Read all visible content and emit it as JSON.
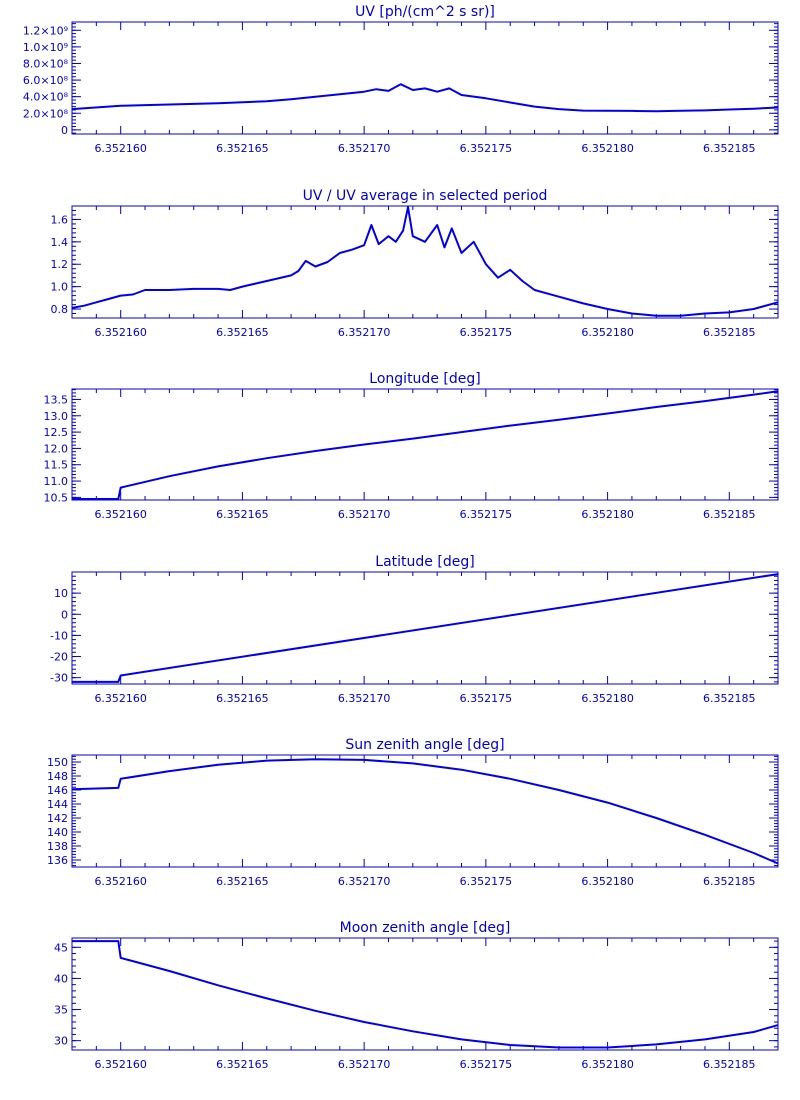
{
  "colors": {
    "axis": "#0000cc",
    "line": "#0000ee",
    "background": "#ffffff"
  },
  "x_tick_labels": [
    "6.352160",
    "6.352165",
    "6.352170",
    "6.352175",
    "6.352180",
    "6.352185"
  ],
  "chart_data": [
    {
      "type": "line",
      "title": "UV [ph/(cm^2 s sr)]",
      "xlim": [
        6.352158,
        6.352187
      ],
      "ylim": [
        -50000000,
        1300000000
      ],
      "yticks": [
        0,
        200000000,
        400000000,
        600000000,
        800000000,
        1000000000,
        1200000000
      ],
      "ytick_labels": [
        "0",
        "2.0×10⁸",
        "4.0×10⁸",
        "6.0×10⁸",
        "8.0×10⁸",
        "1.0×10⁹",
        "1.2×10⁹"
      ],
      "x": [
        6.352158,
        6.35216,
        6.352162,
        6.352164,
        6.352166,
        6.352167,
        6.352168,
        6.352169,
        6.35217,
        6.3521705,
        6.352171,
        6.3521715,
        6.352172,
        6.3521725,
        6.352173,
        6.3521735,
        6.352174,
        6.352175,
        6.352176,
        6.352177,
        6.352178,
        6.352179,
        6.35218,
        6.352181,
        6.352182,
        6.352183,
        6.352184,
        6.352185,
        6.352186,
        6.352187
      ],
      "y": [
        250000000,
        290000000,
        305000000,
        320000000,
        345000000,
        370000000,
        400000000,
        430000000,
        460000000,
        490000000,
        470000000,
        550000000,
        480000000,
        500000000,
        460000000,
        500000000,
        420000000,
        380000000,
        330000000,
        280000000,
        250000000,
        232000000,
        230000000,
        228000000,
        225000000,
        230000000,
        235000000,
        245000000,
        255000000,
        270000000
      ]
    },
    {
      "type": "line",
      "title": "UV / UV average in selected period",
      "xlim": [
        6.352158,
        6.352187
      ],
      "ylim": [
        0.72,
        1.72
      ],
      "yticks": [
        0.8,
        1.0,
        1.2,
        1.4,
        1.6
      ],
      "ytick_labels": [
        "0.8",
        "1.0",
        "1.2",
        "1.4",
        "1.6"
      ],
      "x": [
        6.352158,
        6.3521585,
        6.352159,
        6.3521595,
        6.35216,
        6.3521605,
        6.352161,
        6.352162,
        6.352163,
        6.352164,
        6.3521645,
        6.352165,
        6.352166,
        6.352167,
        6.3521673,
        6.3521676,
        6.352168,
        6.3521685,
        6.352169,
        6.3521695,
        6.35217,
        6.3521703,
        6.3521706,
        6.352171,
        6.3521713,
        6.3521716,
        6.3521718,
        6.352172,
        6.3521725,
        6.352173,
        6.3521733,
        6.3521736,
        6.352174,
        6.3521745,
        6.352175,
        6.3521755,
        6.352176,
        6.3521765,
        6.352177,
        6.352178,
        6.352179,
        6.35218,
        6.352181,
        6.352182,
        6.352183,
        6.352184,
        6.352185,
        6.352186,
        6.352187
      ],
      "y": [
        0.81,
        0.83,
        0.86,
        0.89,
        0.92,
        0.93,
        0.97,
        0.97,
        0.98,
        0.98,
        0.97,
        1.0,
        1.05,
        1.1,
        1.14,
        1.23,
        1.18,
        1.22,
        1.3,
        1.33,
        1.37,
        1.55,
        1.38,
        1.45,
        1.4,
        1.5,
        1.71,
        1.45,
        1.4,
        1.55,
        1.35,
        1.52,
        1.3,
        1.4,
        1.2,
        1.08,
        1.15,
        1.05,
        0.97,
        0.91,
        0.85,
        0.8,
        0.76,
        0.74,
        0.74,
        0.76,
        0.77,
        0.8,
        0.86
      ]
    },
    {
      "type": "line",
      "title": "Longitude [deg]",
      "xlim": [
        6.352158,
        6.352187
      ],
      "ylim": [
        10.42,
        13.82
      ],
      "yticks": [
        10.5,
        11.0,
        11.5,
        12.0,
        12.5,
        13.0,
        13.5
      ],
      "ytick_labels": [
        "10.5",
        "11.0",
        "11.5",
        "12.0",
        "12.5",
        "13.0",
        "13.5"
      ],
      "x": [
        6.352158,
        6.3521599,
        6.35216,
        6.352162,
        6.352164,
        6.352166,
        6.352168,
        6.35217,
        6.352172,
        6.352174,
        6.352176,
        6.352178,
        6.35218,
        6.352182,
        6.352184,
        6.352186,
        6.352187
      ],
      "y": [
        10.45,
        10.45,
        10.8,
        11.15,
        11.45,
        11.7,
        11.92,
        12.12,
        12.3,
        12.5,
        12.7,
        12.88,
        13.07,
        13.27,
        13.45,
        13.65,
        13.75
      ]
    },
    {
      "type": "line",
      "title": "Latitude [deg]",
      "xlim": [
        6.352158,
        6.352187
      ],
      "ylim": [
        -33,
        20
      ],
      "yticks": [
        -30,
        -20,
        -10,
        0,
        10
      ],
      "ytick_labels": [
        "-30",
        "-20",
        "-10",
        "0",
        "10"
      ],
      "x": [
        6.352158,
        6.3521599,
        6.35216,
        6.352187
      ],
      "y": [
        -32,
        -32,
        -29,
        19
      ]
    },
    {
      "type": "line",
      "title": "Sun zenith angle [deg]",
      "xlim": [
        6.352158,
        6.352187
      ],
      "ylim": [
        135,
        151
      ],
      "yticks": [
        136,
        138,
        140,
        142,
        144,
        146,
        148,
        150
      ],
      "ytick_labels": [
        "136",
        "138",
        "140",
        "142",
        "144",
        "146",
        "148",
        "150"
      ],
      "x": [
        6.352158,
        6.3521599,
        6.35216,
        6.352162,
        6.352164,
        6.352166,
        6.352168,
        6.35217,
        6.352172,
        6.352174,
        6.352176,
        6.352178,
        6.35218,
        6.352182,
        6.352184,
        6.352186,
        6.352187
      ],
      "y": [
        146.1,
        146.3,
        147.6,
        148.7,
        149.6,
        150.2,
        150.4,
        150.3,
        149.8,
        148.9,
        147.6,
        146.0,
        144.2,
        142.0,
        139.6,
        137.0,
        135.5
      ]
    },
    {
      "type": "line",
      "title": "Moon zenith angle [deg]",
      "xlim": [
        6.352158,
        6.352187
      ],
      "ylim": [
        28.5,
        46.5
      ],
      "yticks": [
        30,
        35,
        40,
        45
      ],
      "ytick_labels": [
        "30",
        "35",
        "40",
        "45"
      ],
      "x": [
        6.352158,
        6.3521599,
        6.35216,
        6.352162,
        6.352164,
        6.352166,
        6.352168,
        6.35217,
        6.352172,
        6.352174,
        6.352176,
        6.352178,
        6.35218,
        6.352182,
        6.352184,
        6.352186,
        6.352187
      ],
      "y": [
        46.0,
        46.0,
        43.3,
        41.2,
        38.9,
        36.8,
        34.8,
        33.0,
        31.5,
        30.2,
        29.3,
        28.9,
        28.9,
        29.4,
        30.2,
        31.4,
        32.5
      ]
    }
  ]
}
